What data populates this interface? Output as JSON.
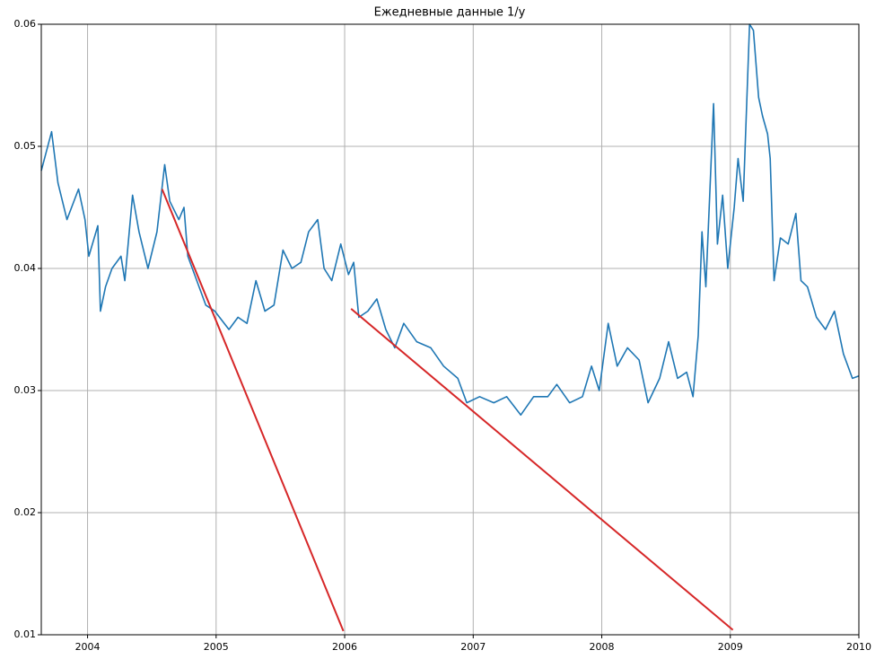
{
  "chart_data": {
    "type": "line",
    "title": "Ежедневные данные 1/y",
    "xlim": [
      2003.64,
      2010
    ],
    "xticks": [
      2004,
      2005,
      2006,
      2007,
      2008,
      2009,
      2010
    ],
    "ylim": [
      0.01,
      0.06
    ],
    "yticks": [
      0.01,
      0.02,
      0.03,
      0.04,
      0.05,
      0.06
    ],
    "grid": true,
    "series": [
      {
        "color": "#1f77b4",
        "x": [
          2003.64,
          2003.72,
          2003.77,
          2003.84,
          2003.93,
          2003.98,
          2004.01,
          2004.08,
          2004.1,
          2004.14,
          2004.19,
          2004.26,
          2004.29,
          2004.35,
          2004.4,
          2004.47,
          2004.54,
          2004.6,
          2004.64,
          2004.71,
          2004.75,
          2004.78,
          2004.85,
          2004.92,
          2004.99,
          2005.1,
          2005.17,
          2005.24,
          2005.31,
          2005.38,
          2005.45,
          2005.52,
          2005.59,
          2005.66,
          2005.72,
          2005.79,
          2005.84,
          2005.9,
          2005.97,
          2006.03,
          2006.07,
          2006.11,
          2006.18,
          2006.25,
          2006.32,
          2006.39,
          2006.46,
          2006.56,
          2006.67,
          2006.77,
          2006.88,
          2006.95,
          2007.05,
          2007.16,
          2007.26,
          2007.37,
          2007.47,
          2007.58,
          2007.65,
          2007.75,
          2007.85,
          2007.92,
          2007.98,
          2008.05,
          2008.12,
          2008.2,
          2008.29,
          2008.36,
          2008.45,
          2008.52,
          2008.59,
          2008.66,
          2008.71,
          2008.75,
          2008.78,
          2008.81,
          2008.87,
          2008.9,
          2008.94,
          2008.98,
          2009.03,
          2009.06,
          2009.1,
          2009.15,
          2009.18,
          2009.22,
          2009.25,
          2009.29,
          2009.31,
          2009.34,
          2009.39,
          2009.45,
          2009.51,
          2009.55,
          2009.6,
          2009.67,
          2009.74,
          2009.81,
          2009.88,
          2009.95,
          2010
        ],
        "values": [
          0.048,
          0.0512,
          0.047,
          0.044,
          0.0465,
          0.044,
          0.041,
          0.0435,
          0.0365,
          0.0385,
          0.04,
          0.041,
          0.039,
          0.046,
          0.043,
          0.04,
          0.043,
          0.0485,
          0.0455,
          0.044,
          0.045,
          0.041,
          0.039,
          0.037,
          0.0365,
          0.035,
          0.036,
          0.0355,
          0.039,
          0.0365,
          0.037,
          0.0415,
          0.04,
          0.0405,
          0.043,
          0.044,
          0.04,
          0.039,
          0.042,
          0.0395,
          0.0405,
          0.036,
          0.0365,
          0.0375,
          0.035,
          0.0335,
          0.0355,
          0.034,
          0.0335,
          0.032,
          0.031,
          0.029,
          0.0295,
          0.029,
          0.0295,
          0.028,
          0.0295,
          0.0295,
          0.0305,
          0.029,
          0.0295,
          0.032,
          0.03,
          0.0355,
          0.032,
          0.0335,
          0.0325,
          0.029,
          0.031,
          0.034,
          0.031,
          0.0315,
          0.0295,
          0.0345,
          0.043,
          0.0385,
          0.0535,
          0.042,
          0.046,
          0.04,
          0.045,
          0.049,
          0.0455,
          0.06,
          0.0595,
          0.054,
          0.0525,
          0.051,
          0.049,
          0.039,
          0.0425,
          0.042,
          0.0445,
          0.039,
          0.0385,
          0.036,
          0.035,
          0.0365,
          0.033,
          0.031,
          0.0312
        ]
      },
      {
        "color": "#d62728",
        "x": [
          2004.58,
          2005.99
        ],
        "values": [
          0.0465,
          0.0103
        ]
      },
      {
        "color": "#d62728",
        "x": [
          2006.05,
          2009.02
        ],
        "values": [
          0.0367,
          0.0104
        ]
      }
    ]
  }
}
